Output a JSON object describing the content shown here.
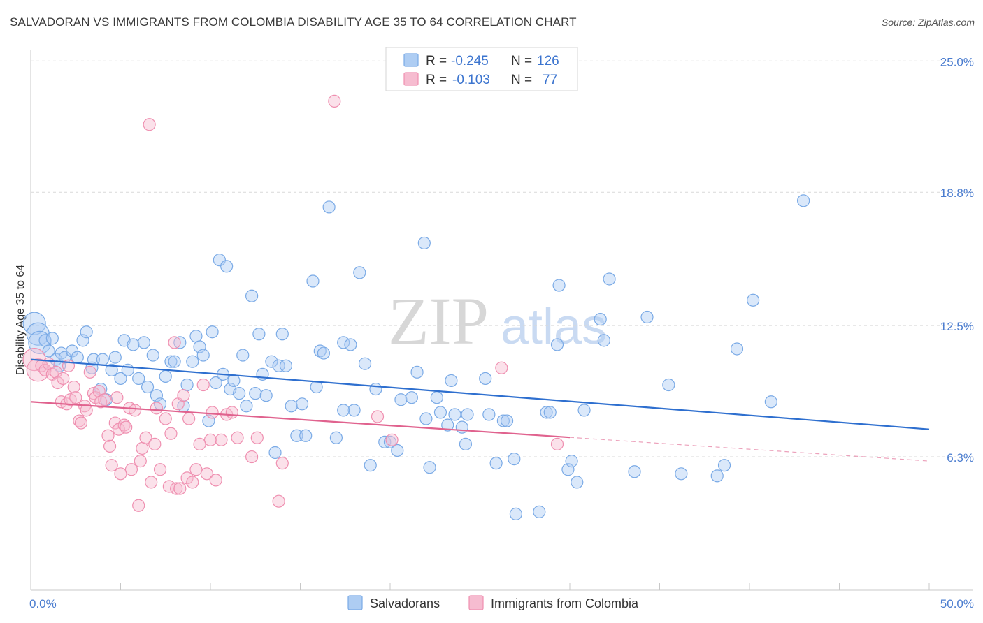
{
  "title": "SALVADORAN VS IMMIGRANTS FROM COLOMBIA DISABILITY AGE 35 TO 64 CORRELATION CHART",
  "source": "Source: ZipAtlas.com",
  "watermark": {
    "zip": "ZIP",
    "atlas": "atlas"
  },
  "colors": {
    "blue_fill": "#aecdf3",
    "blue_stroke": "#7aaae6",
    "blue_line": "#2e6fcf",
    "pink_fill": "#f6bcd0",
    "pink_stroke": "#ef8fb0",
    "pink_line": "#e0628e",
    "value_text": "#3b74cf",
    "grid": "#d9d9d9"
  },
  "legend": {
    "r_label": "R =",
    "n_label": "N =",
    "series": [
      {
        "r": "-0.245",
        "n": "126"
      },
      {
        "r": "-0.103",
        "n": "77"
      }
    ]
  },
  "chart_data": {
    "type": "scatter",
    "title": "SALVADORAN VS IMMIGRANTS FROM COLOMBIA DISABILITY AGE 35 TO 64 CORRELATION CHART",
    "ylabel": "Disability Age 35 to 64",
    "xlabel": "",
    "xlim": [
      0,
      50
    ],
    "ylim": [
      0,
      26
    ],
    "x_tick_labels": [
      {
        "value": 0,
        "label": "0.0%"
      },
      {
        "value": 50,
        "label": "50.0%"
      }
    ],
    "y_tick_labels": [
      {
        "value": 6.3,
        "label": "6.3%"
      },
      {
        "value": 12.5,
        "label": "12.5%"
      },
      {
        "value": 18.8,
        "label": "18.8%"
      },
      {
        "value": 25.0,
        "label": "25.0%"
      }
    ],
    "series": [
      {
        "name": "Salvadorans",
        "trend": {
          "x0": 0,
          "y0": 10.9,
          "x1": 50,
          "y1": 7.6,
          "dash_from": null
        },
        "points": [
          [
            0.2,
            12.6,
            1
          ],
          [
            0.4,
            12.1,
            1
          ],
          [
            0.5,
            11.7,
            1
          ],
          [
            0.8,
            11.8,
            0
          ],
          [
            1.0,
            11.3,
            0
          ],
          [
            1.2,
            11.9,
            0
          ],
          [
            1.4,
            10.9,
            0
          ],
          [
            1.6,
            10.6,
            0
          ],
          [
            1.7,
            11.2,
            0
          ],
          [
            1.9,
            11.0,
            0
          ],
          [
            2.3,
            11.3,
            0
          ],
          [
            2.6,
            11.0,
            0
          ],
          [
            2.9,
            11.8,
            0
          ],
          [
            3.1,
            12.2,
            0
          ],
          [
            3.4,
            10.5,
            0
          ],
          [
            3.5,
            10.9,
            0
          ],
          [
            3.9,
            9.5,
            0
          ],
          [
            4.0,
            10.9,
            0
          ],
          [
            4.2,
            9.0,
            0
          ],
          [
            4.5,
            10.4,
            0
          ],
          [
            4.7,
            11.0,
            0
          ],
          [
            5.0,
            10.0,
            0
          ],
          [
            5.2,
            11.8,
            0
          ],
          [
            5.4,
            10.4,
            0
          ],
          [
            5.7,
            11.6,
            0
          ],
          [
            6.0,
            10.0,
            0
          ],
          [
            6.3,
            11.7,
            0
          ],
          [
            6.5,
            9.6,
            0
          ],
          [
            6.8,
            11.1,
            0
          ],
          [
            7.0,
            9.2,
            0
          ],
          [
            7.2,
            8.8,
            0
          ],
          [
            7.5,
            10.1,
            0
          ],
          [
            7.8,
            10.8,
            0
          ],
          [
            8.0,
            10.8,
            0
          ],
          [
            8.3,
            11.7,
            0
          ],
          [
            8.5,
            8.7,
            0
          ],
          [
            8.7,
            9.7,
            0
          ],
          [
            9.0,
            10.8,
            0
          ],
          [
            9.2,
            12.0,
            0
          ],
          [
            9.4,
            11.5,
            0
          ],
          [
            9.6,
            11.1,
            0
          ],
          [
            9.9,
            8.0,
            0
          ],
          [
            10.1,
            12.2,
            0
          ],
          [
            10.3,
            9.8,
            0
          ],
          [
            10.5,
            15.6,
            0
          ],
          [
            10.7,
            10.2,
            0
          ],
          [
            10.9,
            15.3,
            0
          ],
          [
            11.1,
            9.5,
            0
          ],
          [
            11.3,
            9.9,
            0
          ],
          [
            11.6,
            9.3,
            0
          ],
          [
            11.8,
            11.1,
            0
          ],
          [
            12.0,
            8.7,
            0
          ],
          [
            12.3,
            13.9,
            0
          ],
          [
            12.5,
            9.3,
            0
          ],
          [
            12.7,
            12.1,
            0
          ],
          [
            12.9,
            10.2,
            0
          ],
          [
            13.1,
            9.2,
            0
          ],
          [
            13.4,
            10.8,
            0
          ],
          [
            13.6,
            6.5,
            0
          ],
          [
            13.8,
            10.6,
            0
          ],
          [
            14.0,
            12.1,
            0
          ],
          [
            14.2,
            10.6,
            0
          ],
          [
            14.5,
            8.7,
            0
          ],
          [
            14.8,
            7.3,
            0
          ],
          [
            15.1,
            8.8,
            0
          ],
          [
            15.3,
            7.3,
            0
          ],
          [
            15.7,
            14.6,
            0
          ],
          [
            15.9,
            9.6,
            0
          ],
          [
            16.1,
            11.3,
            0
          ],
          [
            16.3,
            11.2,
            0
          ],
          [
            16.6,
            18.1,
            0
          ],
          [
            17.0,
            7.2,
            0
          ],
          [
            17.4,
            11.7,
            0
          ],
          [
            17.8,
            11.6,
            0
          ],
          [
            18.0,
            8.5,
            0
          ],
          [
            18.3,
            15.0,
            0
          ],
          [
            18.6,
            10.7,
            0
          ],
          [
            18.9,
            5.9,
            0
          ],
          [
            19.2,
            9.5,
            0
          ],
          [
            19.7,
            7.0,
            0
          ],
          [
            20.0,
            7.0,
            0
          ],
          [
            20.4,
            6.6,
            0
          ],
          [
            20.6,
            9.0,
            0
          ],
          [
            21.2,
            9.1,
            0
          ],
          [
            21.5,
            10.3,
            0
          ],
          [
            21.9,
            16.4,
            0
          ],
          [
            22.0,
            8.1,
            0
          ],
          [
            22.2,
            5.8,
            0
          ],
          [
            22.6,
            9.1,
            0
          ],
          [
            22.8,
            8.4,
            0
          ],
          [
            23.2,
            7.8,
            0
          ],
          [
            23.4,
            9.9,
            0
          ],
          [
            23.6,
            8.3,
            0
          ],
          [
            24.0,
            7.7,
            0
          ],
          [
            24.2,
            6.9,
            0
          ],
          [
            24.3,
            8.3,
            0
          ],
          [
            25.3,
            10.0,
            0
          ],
          [
            25.5,
            8.3,
            0
          ],
          [
            25.9,
            6.0,
            0
          ],
          [
            26.3,
            8.0,
            0
          ],
          [
            26.5,
            8.0,
            0
          ],
          [
            26.9,
            6.2,
            0
          ],
          [
            27.0,
            3.6,
            0
          ],
          [
            28.3,
            3.7,
            0
          ],
          [
            28.7,
            8.4,
            0
          ],
          [
            28.9,
            8.4,
            0
          ],
          [
            29.3,
            11.6,
            0
          ],
          [
            29.4,
            14.4,
            0
          ],
          [
            29.9,
            5.7,
            0
          ],
          [
            30.1,
            6.1,
            0
          ],
          [
            30.4,
            5.1,
            0
          ],
          [
            30.8,
            8.5,
            0
          ],
          [
            31.7,
            12.8,
            0
          ],
          [
            31.9,
            11.8,
            0
          ],
          [
            32.2,
            14.7,
            0
          ],
          [
            33.6,
            5.6,
            0
          ],
          [
            34.3,
            12.9,
            0
          ],
          [
            35.5,
            9.7,
            0
          ],
          [
            36.2,
            5.5,
            0
          ],
          [
            38.2,
            5.4,
            0
          ],
          [
            38.6,
            5.9,
            0
          ],
          [
            39.3,
            11.4,
            0
          ],
          [
            40.2,
            13.7,
            0
          ],
          [
            41.2,
            8.9,
            0
          ],
          [
            43.0,
            18.4,
            0
          ],
          [
            17.4,
            8.5,
            0
          ]
        ]
      },
      {
        "name": "Immigrants from Colombia",
        "trend": {
          "x0": 0,
          "y0": 8.9,
          "x1": 50,
          "y1": 6.1,
          "dash_from": 30
        },
        "points": [
          [
            0.2,
            10.9,
            1
          ],
          [
            0.4,
            10.4,
            1
          ],
          [
            0.6,
            10.6,
            0
          ],
          [
            0.8,
            10.4,
            0
          ],
          [
            1.0,
            10.7,
            0
          ],
          [
            1.2,
            10.2,
            0
          ],
          [
            1.4,
            10.3,
            0
          ],
          [
            1.5,
            9.8,
            0
          ],
          [
            1.7,
            8.9,
            0
          ],
          [
            1.8,
            10.0,
            0
          ],
          [
            2.0,
            8.8,
            0
          ],
          [
            2.1,
            10.6,
            0
          ],
          [
            2.2,
            9.0,
            0
          ],
          [
            2.4,
            9.6,
            0
          ],
          [
            2.5,
            9.1,
            0
          ],
          [
            2.7,
            8.0,
            0
          ],
          [
            2.8,
            7.9,
            0
          ],
          [
            3.0,
            8.7,
            0
          ],
          [
            3.1,
            8.5,
            0
          ],
          [
            3.3,
            10.3,
            0
          ],
          [
            3.5,
            9.3,
            0
          ],
          [
            3.6,
            9.1,
            0
          ],
          [
            3.8,
            9.4,
            0
          ],
          [
            3.9,
            8.9,
            0
          ],
          [
            4.1,
            9.0,
            0
          ],
          [
            4.3,
            7.3,
            0
          ],
          [
            4.4,
            6.8,
            0
          ],
          [
            4.5,
            5.9,
            0
          ],
          [
            4.7,
            7.9,
            0
          ],
          [
            4.8,
            9.1,
            0
          ],
          [
            4.9,
            7.6,
            0
          ],
          [
            5.0,
            5.5,
            0
          ],
          [
            5.2,
            7.8,
            0
          ],
          [
            5.3,
            7.7,
            0
          ],
          [
            5.5,
            8.6,
            0
          ],
          [
            5.6,
            5.7,
            0
          ],
          [
            5.8,
            8.5,
            0
          ],
          [
            6.0,
            4.0,
            0
          ],
          [
            6.1,
            6.1,
            0
          ],
          [
            6.2,
            6.7,
            0
          ],
          [
            6.4,
            7.2,
            0
          ],
          [
            6.6,
            22.0,
            0
          ],
          [
            6.7,
            5.1,
            0
          ],
          [
            6.9,
            6.9,
            0
          ],
          [
            7.0,
            8.6,
            0
          ],
          [
            7.2,
            5.7,
            0
          ],
          [
            7.5,
            8.1,
            0
          ],
          [
            7.7,
            4.9,
            0
          ],
          [
            7.8,
            7.4,
            0
          ],
          [
            8.0,
            11.7,
            0
          ],
          [
            8.1,
            4.8,
            0
          ],
          [
            8.2,
            8.8,
            0
          ],
          [
            8.3,
            4.8,
            0
          ],
          [
            8.5,
            9.2,
            0
          ],
          [
            8.7,
            5.3,
            0
          ],
          [
            8.8,
            8.1,
            0
          ],
          [
            9.0,
            5.1,
            0
          ],
          [
            9.2,
            5.7,
            0
          ],
          [
            9.4,
            6.9,
            0
          ],
          [
            9.6,
            9.7,
            0
          ],
          [
            9.8,
            5.5,
            0
          ],
          [
            10.0,
            7.1,
            0
          ],
          [
            10.1,
            8.4,
            0
          ],
          [
            10.3,
            5.2,
            0
          ],
          [
            10.6,
            7.1,
            0
          ],
          [
            10.9,
            8.3,
            0
          ],
          [
            11.2,
            8.4,
            0
          ],
          [
            11.5,
            7.2,
            0
          ],
          [
            12.3,
            6.3,
            0
          ],
          [
            12.6,
            7.2,
            0
          ],
          [
            13.8,
            4.2,
            0
          ],
          [
            14.0,
            6.0,
            0
          ],
          [
            16.9,
            23.1,
            0
          ],
          [
            19.3,
            8.2,
            0
          ],
          [
            20.1,
            7.1,
            0
          ],
          [
            26.2,
            10.5,
            0
          ],
          [
            29.3,
            6.9,
            0
          ]
        ]
      }
    ],
    "legend_entries": [
      "Salvadorans",
      "Immigrants from Colombia"
    ]
  }
}
